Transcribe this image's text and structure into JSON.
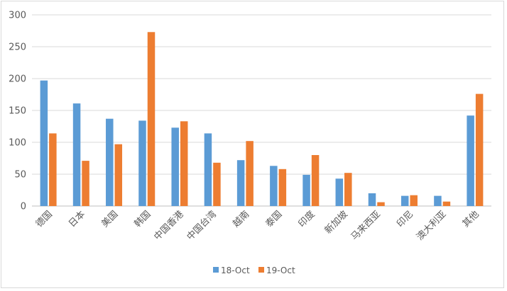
{
  "chart_data": {
    "type": "bar",
    "title": "",
    "xlabel": "",
    "ylabel": "",
    "ylim": [
      0,
      300
    ],
    "yticks": [
      "0",
      "50",
      "100",
      "150",
      "200",
      "250",
      "300"
    ],
    "grid": true,
    "legend_position": "bottom",
    "categories": [
      "德国",
      "日本",
      "美国",
      "韩国",
      "中国香港",
      "中国台湾",
      "越南",
      "泰国",
      "印度",
      "新加坡",
      "马来西亚",
      "印尼",
      "澳大利亚",
      "其他"
    ],
    "series": [
      {
        "name": "18-Oct",
        "color": "#5b9bd5",
        "values": [
          197,
          161,
          137,
          134,
          123,
          114,
          72,
          63,
          49,
          43,
          20,
          16,
          16,
          142
        ]
      },
      {
        "name": "19-Oct",
        "color": "#ed7d31",
        "values": [
          114,
          71,
          97,
          273,
          133,
          68,
          102,
          58,
          80,
          52,
          6,
          17,
          7,
          176
        ]
      }
    ]
  }
}
